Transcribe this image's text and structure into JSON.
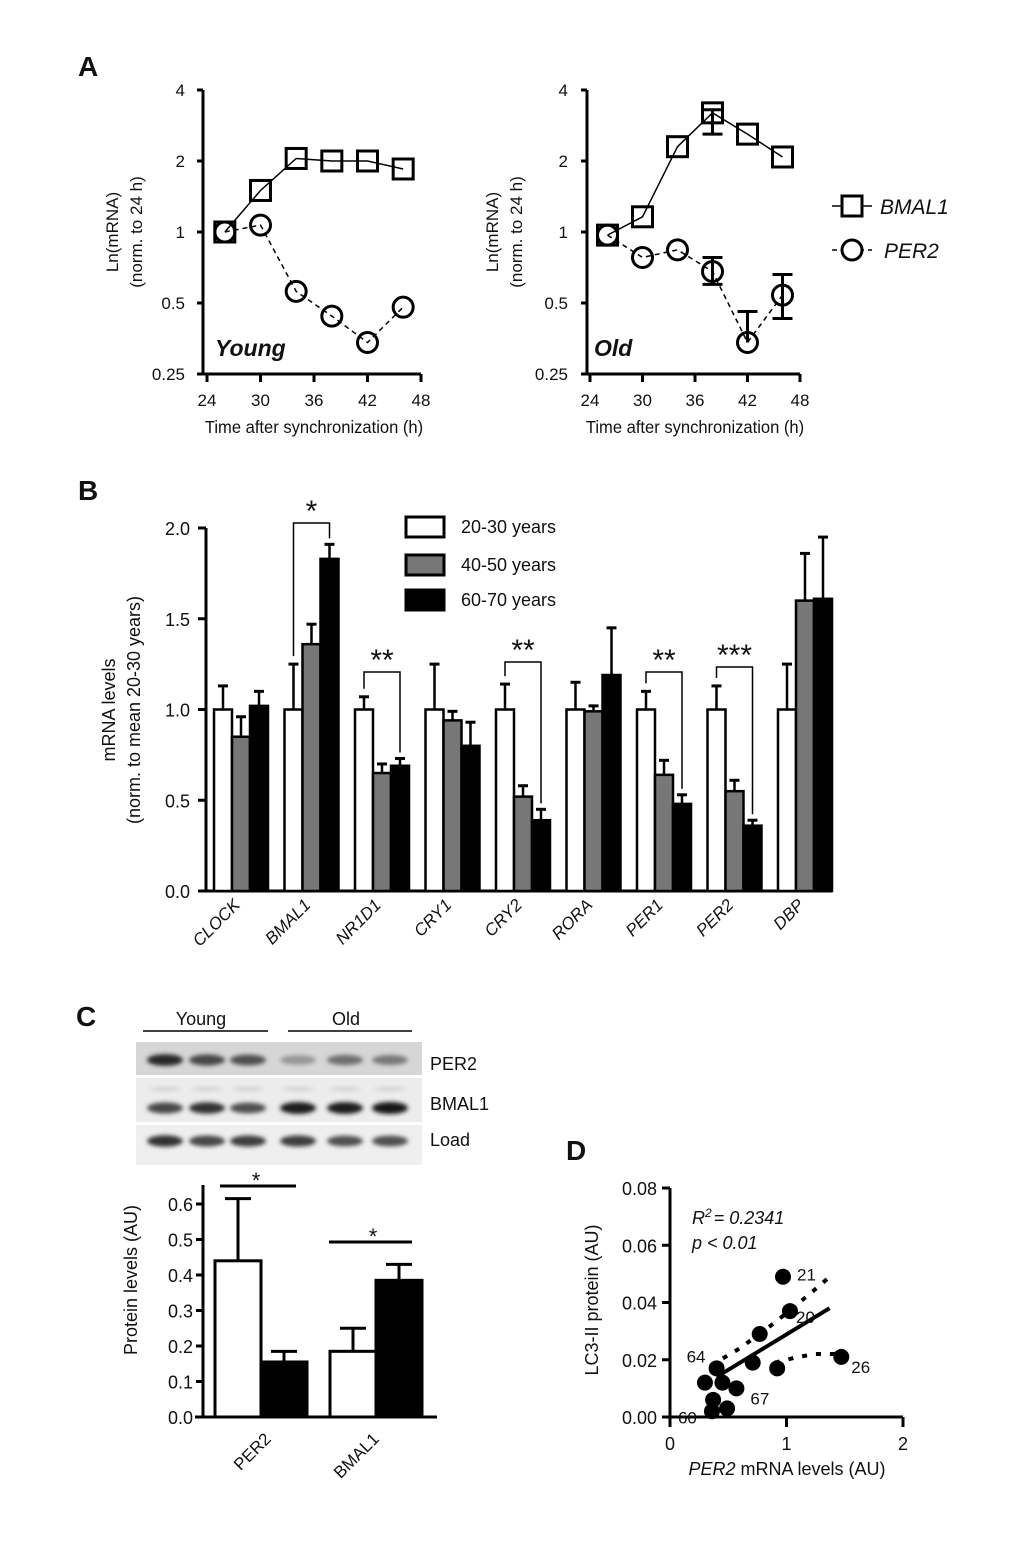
{
  "panel_labels": {
    "a": "A",
    "b": "B",
    "c": "C",
    "d": "D"
  },
  "chart_data": [
    {
      "id": "A-young",
      "type": "line",
      "title": "Young",
      "xlabel": "Time after synchronization (h)",
      "ylabel": [
        "Ln(mRNA)",
        "(norm. to  24 h)"
      ],
      "yscale": "log2",
      "ylim": [
        0.25,
        4
      ],
      "yticks": [
        {
          "v": 4,
          "label": "4"
        },
        {
          "v": 2,
          "label": "2"
        },
        {
          "v": 1,
          "label": "1"
        },
        {
          "v": 0.5,
          "label": "0.5"
        },
        {
          "v": 0.25,
          "label": "0.25"
        }
      ],
      "xlim": [
        24,
        48
      ],
      "xticks": [
        "24",
        "30",
        "36",
        "42",
        "48"
      ],
      "x": [
        26,
        30,
        34,
        38,
        42,
        46
      ],
      "series": [
        {
          "name": "BMAL1",
          "marker": "square",
          "line": "solid",
          "values": [
            1.0,
            1.5,
            2.05,
            2.0,
            2.0,
            1.85
          ],
          "err_low": [
            null,
            null,
            null,
            null,
            null,
            null
          ],
          "err_high": [
            null,
            null,
            null,
            null,
            null,
            null
          ]
        },
        {
          "name": "PER2",
          "marker": "circle",
          "line": "dashed",
          "values": [
            1.0,
            1.07,
            0.56,
            0.44,
            0.34,
            0.48
          ],
          "err_low": [
            null,
            null,
            null,
            null,
            null,
            null
          ],
          "err_high": [
            null,
            null,
            null,
            null,
            null,
            null
          ]
        }
      ]
    },
    {
      "id": "A-old",
      "type": "line",
      "title": "Old",
      "xlabel": "Time after synchronization (h)",
      "ylabel": [
        "Ln(mRNA)",
        "(norm. to  24 h)"
      ],
      "yscale": "log2",
      "ylim": [
        0.25,
        4
      ],
      "yticks": [
        {
          "v": 4,
          "label": "4"
        },
        {
          "v": 2,
          "label": "2"
        },
        {
          "v": 1,
          "label": "1"
        },
        {
          "v": 0.5,
          "label": "0.5"
        },
        {
          "v": 0.25,
          "label": "0.25"
        }
      ],
      "xlim": [
        24,
        48
      ],
      "xticks": [
        "24",
        "30",
        "36",
        "42",
        "48"
      ],
      "x": [
        26,
        30,
        34,
        38,
        42,
        46
      ],
      "series": [
        {
          "name": "BMAL1",
          "marker": "square",
          "line": "solid",
          "values": [
            0.97,
            1.16,
            2.3,
            3.2,
            2.6,
            2.08
          ],
          "err_low": [
            null,
            null,
            null,
            2.6,
            null,
            null
          ],
          "err_high": [
            null,
            null,
            null,
            3.3,
            null,
            null
          ]
        },
        {
          "name": "PER2",
          "marker": "circle",
          "line": "dashed",
          "values": [
            0.97,
            0.78,
            0.84,
            0.68,
            0.34,
            0.54
          ],
          "err_low": [
            null,
            null,
            null,
            0.6,
            null,
            0.43
          ],
          "err_high": [
            null,
            null,
            null,
            0.78,
            0.46,
            0.66
          ]
        }
      ],
      "legend": {
        "placement": "right",
        "entries": [
          "BMAL1",
          "PER2"
        ]
      }
    },
    {
      "id": "B",
      "type": "bar",
      "ylabel": [
        "mRNA levels",
        "(norm. to mean 20-30 years)"
      ],
      "ylim": [
        0,
        2.0
      ],
      "yticks": [
        "0.0",
        "0.5",
        "1.0",
        "1.5",
        "2.0"
      ],
      "categories": [
        "CLOCK",
        "BMAL1",
        "NR1D1",
        "CRY1",
        "CRY2",
        "RORA",
        "PER1",
        "PER2",
        "DBP"
      ],
      "series": [
        {
          "name": "20-30 years",
          "color": "#ffffff",
          "values": [
            1.0,
            1.0,
            1.0,
            1.0,
            1.0,
            1.0,
            1.0,
            1.0,
            1.0
          ],
          "errors": [
            0.13,
            0.25,
            0.07,
            0.25,
            0.14,
            0.15,
            0.1,
            0.13,
            0.25
          ]
        },
        {
          "name": "40-50 years",
          "color": "#777777",
          "values": [
            0.85,
            1.36,
            0.65,
            0.94,
            0.52,
            0.99,
            0.64,
            0.55,
            1.6
          ],
          "errors": [
            0.11,
            0.11,
            0.05,
            0.05,
            0.06,
            0.03,
            0.08,
            0.06,
            0.26
          ]
        },
        {
          "name": "60-70 years",
          "color": "#000000",
          "values": [
            1.02,
            1.83,
            0.69,
            0.8,
            0.39,
            1.19,
            0.48,
            0.36,
            1.61
          ],
          "errors": [
            0.08,
            0.08,
            0.04,
            0.13,
            0.06,
            0.26,
            0.05,
            0.03,
            0.34
          ]
        }
      ],
      "significance": [
        {
          "category": "BMAL1",
          "label": "*"
        },
        {
          "category": "NR1D1",
          "label": "**"
        },
        {
          "category": "CRY2",
          "label": "**"
        },
        {
          "category": "PER1",
          "label": "**"
        },
        {
          "category": "PER2",
          "label": "***"
        }
      ],
      "legend": {
        "placement": "top-center"
      }
    },
    {
      "id": "C",
      "type": "bar",
      "ylabel": "Protein levels (AU)",
      "ylim": [
        0,
        0.65
      ],
      "yticks": [
        "0.0",
        "0.1",
        "0.2",
        "0.3",
        "0.4",
        "0.5",
        "0.6"
      ],
      "categories": [
        "PER2",
        "BMAL1"
      ],
      "series": [
        {
          "name": "Young",
          "color": "#ffffff",
          "values": [
            0.44,
            0.185
          ],
          "errors": [
            0.175,
            0.065
          ]
        },
        {
          "name": "Old",
          "color": "#000000",
          "values": [
            0.155,
            0.385
          ],
          "errors": [
            0.03,
            0.045
          ]
        }
      ],
      "significance": [
        {
          "category": "PER2",
          "label": "*"
        },
        {
          "category": "BMAL1",
          "label": "*"
        }
      ],
      "blot": {
        "groups": [
          "Young",
          "Old"
        ],
        "rows": [
          {
            "label": "PER2",
            "intensity": [
              0.9,
              0.75,
              0.7,
              0.35,
              0.55,
              0.5
            ]
          },
          {
            "label": "BMAL1",
            "intensity": [
              0.75,
              0.85,
              0.7,
              0.95,
              0.95,
              1.0
            ]
          },
          {
            "label": "Load",
            "intensity": [
              0.85,
              0.75,
              0.8,
              0.8,
              0.7,
              0.7
            ]
          }
        ]
      }
    },
    {
      "id": "D",
      "type": "scatter",
      "xlabel_italic": "PER2",
      "xlabel": " mRNA levels (AU)",
      "ylabel": "LC3-II protein (AU)",
      "xlim": [
        0,
        2
      ],
      "ylim": [
        0,
        0.08
      ],
      "xticks": [
        "0",
        "1",
        "2"
      ],
      "yticks": [
        "0.00",
        "0.02",
        "0.04",
        "0.06",
        "0.08"
      ],
      "annotation": {
        "r2_label": "R",
        "r2_sup": "2",
        "r2_value": "= 0.2341",
        "p_value": "p < 0.01"
      },
      "points": [
        {
          "x": 0.97,
          "y": 0.049,
          "label": "21"
        },
        {
          "x": 1.03,
          "y": 0.037,
          "label": "20"
        },
        {
          "x": 0.77,
          "y": 0.029,
          "label": ""
        },
        {
          "x": 1.47,
          "y": 0.021,
          "label": "26"
        },
        {
          "x": 0.4,
          "y": 0.017,
          "label": "64"
        },
        {
          "x": 0.71,
          "y": 0.019,
          "label": ""
        },
        {
          "x": 0.92,
          "y": 0.017,
          "label": ""
        },
        {
          "x": 0.3,
          "y": 0.012,
          "label": ""
        },
        {
          "x": 0.45,
          "y": 0.012,
          "label": ""
        },
        {
          "x": 0.57,
          "y": 0.01,
          "label": "67"
        },
        {
          "x": 0.37,
          "y": 0.006,
          "label": ""
        },
        {
          "x": 0.36,
          "y": 0.002,
          "label": "60"
        },
        {
          "x": 0.49,
          "y": 0.003,
          "label": ""
        }
      ],
      "fit": {
        "x": [
          0.4,
          1.37
        ],
        "y": [
          0.014,
          0.038
        ]
      },
      "ci_upper": {
        "x": [
          0.35,
          0.6,
          0.9,
          1.2,
          1.4
        ],
        "y": [
          0.018,
          0.024,
          0.033,
          0.043,
          0.05
        ]
      },
      "ci_lower": {
        "x": [
          0.9,
          1.1,
          1.25,
          1.45
        ],
        "y": [
          0.019,
          0.021,
          0.022,
          0.022
        ]
      }
    }
  ]
}
